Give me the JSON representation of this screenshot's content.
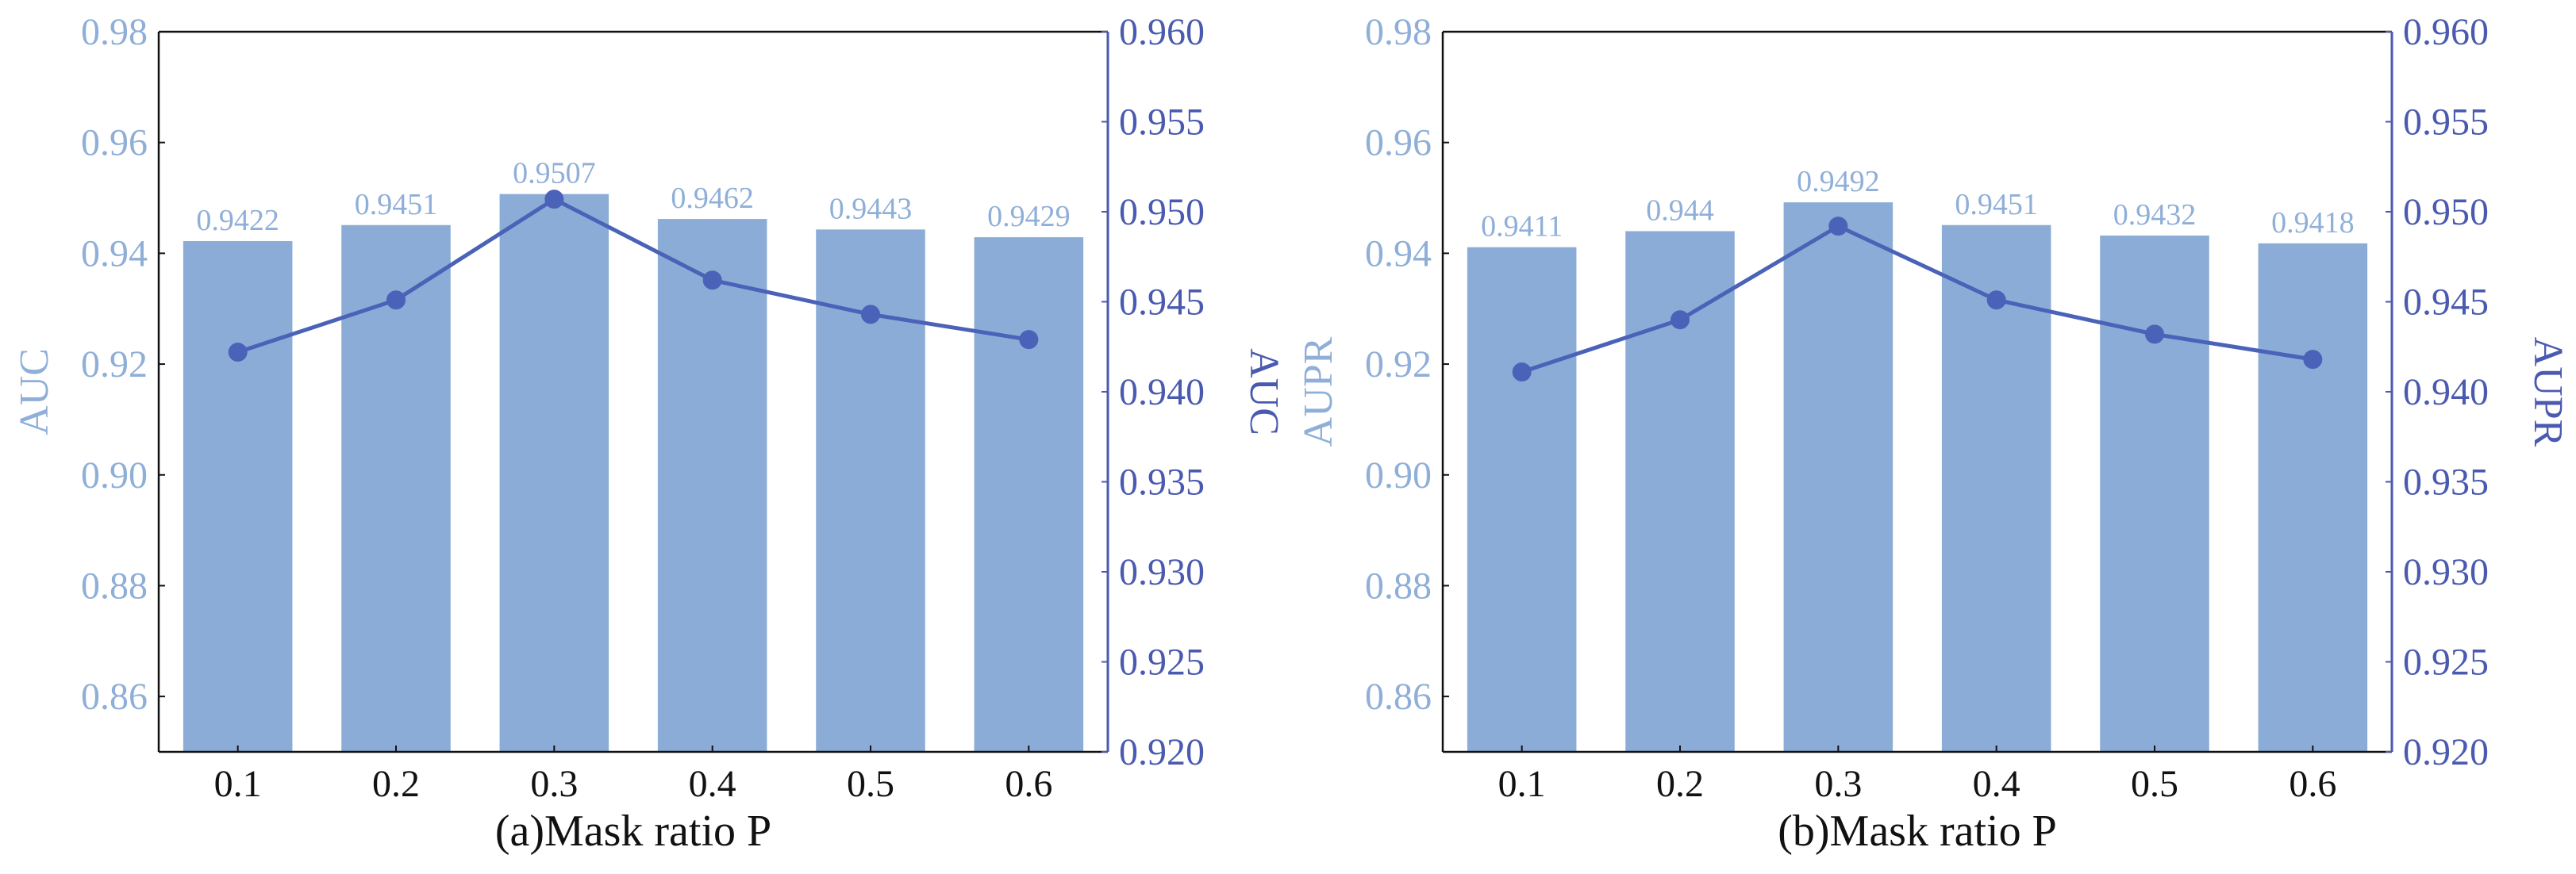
{
  "colors": {
    "bar": "#8BACD6",
    "line": "#4A62B8",
    "left_axis_text": "#8FAFD8",
    "right_axis_text": "#4A5AB0",
    "frame": "#111111"
  },
  "chart_data": [
    {
      "type": "bar+line",
      "xlabel": "(a)Mask ratio P",
      "categories": [
        "0.1",
        "0.2",
        "0.3",
        "0.4",
        "0.5",
        "0.6"
      ],
      "bar_series": {
        "name": "AUC",
        "values": [
          0.9422,
          0.9451,
          0.9507,
          0.9462,
          0.9443,
          0.9429
        ],
        "labels": [
          "0.9422",
          "0.9451",
          "0.9507",
          "0.9462",
          "0.9443",
          "0.9429"
        ]
      },
      "line_series": {
        "name": "AUC",
        "values": [
          0.9422,
          0.9451,
          0.9507,
          0.9462,
          0.9443,
          0.9429
        ]
      },
      "y_left": {
        "label": "AUC",
        "min": 0.85,
        "max": 0.98,
        "ticks": [
          "0.86",
          "0.88",
          "0.90",
          "0.92",
          "0.94",
          "0.96",
          "0.98"
        ]
      },
      "y_right": {
        "label": "AUC",
        "min": 0.92,
        "max": 0.96,
        "ticks": [
          "0.920",
          "0.925",
          "0.930",
          "0.935",
          "0.940",
          "0.945",
          "0.950",
          "0.955",
          "0.960"
        ]
      },
      "grid": false
    },
    {
      "type": "bar+line",
      "xlabel": "(b)Mask ratio P",
      "categories": [
        "0.1",
        "0.2",
        "0.3",
        "0.4",
        "0.5",
        "0.6"
      ],
      "bar_series": {
        "name": "AUPR",
        "values": [
          0.9411,
          0.944,
          0.9492,
          0.9451,
          0.9432,
          0.9418
        ],
        "labels": [
          "0.9411",
          "0.944",
          "0.9492",
          "0.9451",
          "0.9432",
          "0.9418"
        ]
      },
      "line_series": {
        "name": "AUPR",
        "values": [
          0.9411,
          0.944,
          0.9492,
          0.9451,
          0.9432,
          0.9418
        ]
      },
      "y_left": {
        "label": "AUPR",
        "min": 0.85,
        "max": 0.98,
        "ticks": [
          "0.86",
          "0.88",
          "0.90",
          "0.92",
          "0.94",
          "0.96",
          "0.98"
        ]
      },
      "y_right": {
        "label": "AUPR",
        "min": 0.92,
        "max": 0.96,
        "ticks": [
          "0.920",
          "0.925",
          "0.930",
          "0.935",
          "0.940",
          "0.945",
          "0.950",
          "0.955",
          "0.960"
        ]
      },
      "grid": false
    }
  ]
}
